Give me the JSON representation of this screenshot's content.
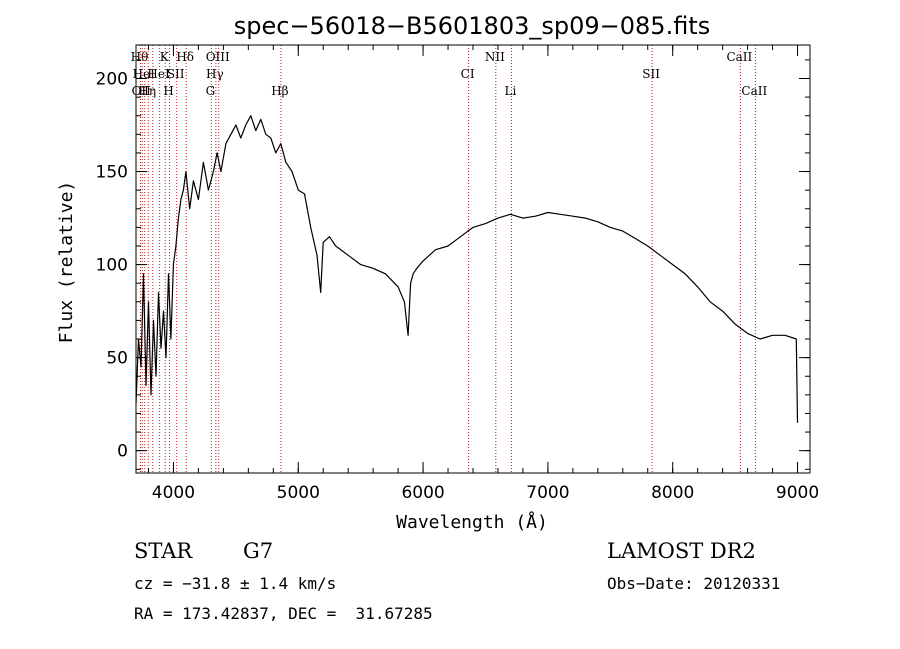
{
  "chart_data": {
    "type": "line",
    "title": "spec−56018−B5601803_sp09−085.fits",
    "xlabel": "Wavelength (Å)",
    "ylabel": "Flux (relative)",
    "xlim": [
      3700,
      9100
    ],
    "ylim": [
      -12,
      218
    ],
    "xticks": [
      {
        "value": 4000,
        "label": "4000"
      },
      {
        "value": 5000,
        "label": "5000"
      },
      {
        "value": 6000,
        "label": "6000"
      },
      {
        "value": 7000,
        "label": "7000"
      },
      {
        "value": 8000,
        "label": "8000"
      },
      {
        "value": 9000,
        "label": "9000"
      }
    ],
    "yticks": [
      {
        "value": 0,
        "label": "0"
      },
      {
        "value": 50,
        "label": "50"
      },
      {
        "value": 100,
        "label": "100"
      },
      {
        "value": 150,
        "label": "150"
      },
      {
        "value": 200,
        "label": "200"
      }
    ],
    "x_minor_step": 200,
    "y_minor_step": 10,
    "line_color": "#000000",
    "marker_color": "#b22222",
    "series": [
      {
        "x": [
          3700,
          3720,
          3740,
          3760,
          3780,
          3800,
          3820,
          3840,
          3860,
          3880,
          3900,
          3920,
          3940,
          3960,
          3980,
          4000,
          4020,
          4040,
          4060,
          4080,
          4100,
          4130,
          4160,
          4200,
          4240,
          4280,
          4320,
          4350,
          4380,
          4420,
          4460,
          4500,
          4540,
          4580,
          4620,
          4660,
          4700,
          4740,
          4780,
          4820,
          4860,
          4900,
          4950,
          5000,
          5050,
          5100,
          5150,
          5180,
          5200,
          5250,
          5300,
          5400,
          5500,
          5600,
          5700,
          5800,
          5850,
          5880,
          5900,
          5920,
          5950,
          6000,
          6100,
          6200,
          6300,
          6400,
          6500,
          6600,
          6700,
          6800,
          6900,
          7000,
          7100,
          7200,
          7300,
          7400,
          7500,
          7600,
          7700,
          7800,
          7900,
          8000,
          8100,
          8200,
          8300,
          8400,
          8500,
          8600,
          8700,
          8800,
          8900,
          8990,
          9000
        ],
        "y": [
          25,
          60,
          45,
          95,
          35,
          80,
          30,
          70,
          40,
          85,
          55,
          75,
          50,
          95,
          60,
          100,
          110,
          125,
          135,
          140,
          150,
          130,
          145,
          135,
          155,
          140,
          150,
          160,
          150,
          165,
          170,
          175,
          168,
          175,
          180,
          172,
          178,
          170,
          168,
          160,
          165,
          155,
          150,
          140,
          138,
          120,
          105,
          85,
          112,
          115,
          110,
          105,
          100,
          98,
          95,
          88,
          80,
          62,
          90,
          95,
          98,
          102,
          108,
          110,
          115,
          120,
          122,
          125,
          127,
          125,
          126,
          128,
          127,
          126,
          125,
          123,
          120,
          118,
          114,
          110,
          105,
          100,
          95,
          88,
          80,
          75,
          68,
          63,
          60,
          62,
          62,
          60,
          15
        ]
      }
    ],
    "line_markers": [
      {
        "x": 3736,
        "label": "Hθ",
        "row": 0
      },
      {
        "x": 3750,
        "label": "OII",
        "row": 2
      },
      {
        "x": 3770,
        "label": "HeI",
        "row": 1
      },
      {
        "x": 3798,
        "label": "Hη",
        "row": 2
      },
      {
        "x": 3835,
        "label": "",
        "row": 0
      },
      {
        "x": 3889,
        "label": "HeI",
        "row": 1
      },
      {
        "x": 3934,
        "label": "K",
        "row": 0
      },
      {
        "x": 3969,
        "label": "H",
        "row": 2
      },
      {
        "x": 4026,
        "label": "SII",
        "row": 1
      },
      {
        "x": 4102,
        "label": "Hδ",
        "row": 0
      },
      {
        "x": 4304,
        "label": "G",
        "row": 2
      },
      {
        "x": 4340,
        "label": "Hγ",
        "row": 1
      },
      {
        "x": 4363,
        "label": "OIII",
        "row": 0
      },
      {
        "x": 4861,
        "label": "Hβ",
        "row": 2
      },
      {
        "x": 6365,
        "label": "CI",
        "row": 1
      },
      {
        "x": 6583,
        "label": "NII",
        "row": 0
      },
      {
        "x": 6708,
        "label": "Li",
        "row": 2
      },
      {
        "x": 7835,
        "label": "SII",
        "row": 1
      },
      {
        "x": 8542,
        "label": "CaII",
        "row": 0
      },
      {
        "x": 8662,
        "label": "CaII",
        "row": 2
      }
    ]
  },
  "info": {
    "object_class": "STAR",
    "subclass": "G7",
    "survey": "LAMOST DR2",
    "cz": "cz = −31.8 ± 1.4 km/s",
    "obs_date": "Obs−Date: 20120331",
    "coords": "RA = 173.42837, DEC =  31.67285"
  }
}
